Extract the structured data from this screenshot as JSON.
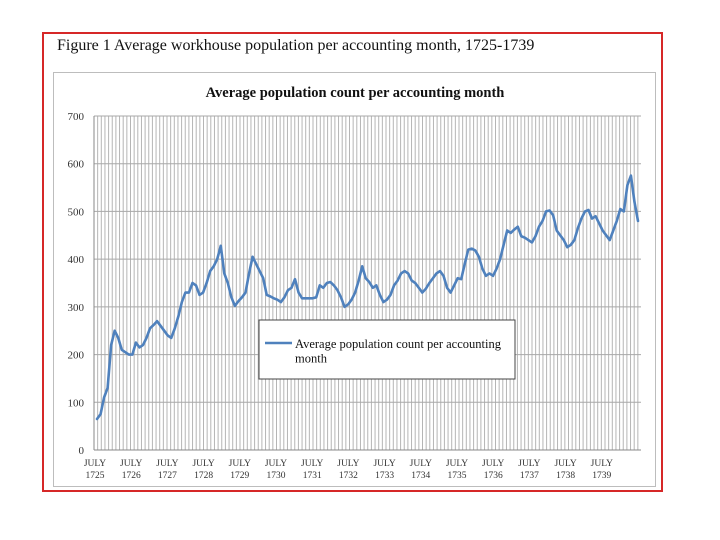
{
  "figure_title": "Figure 1 Average workhouse population per accounting month, 1725-1739",
  "chart_data": {
    "type": "line",
    "title": "Average population count per accounting month",
    "xlabel": "",
    "ylabel": "",
    "ylim": [
      0,
      700
    ],
    "yticks": [
      0,
      100,
      200,
      300,
      400,
      500,
      600,
      700
    ],
    "grid": {
      "horizontal": true,
      "vertical": true
    },
    "x_tick_labels": [
      {
        "month": "JULY",
        "year": "1725"
      },
      {
        "month": "JULY",
        "year": "1726"
      },
      {
        "month": "JULY",
        "year": "1727"
      },
      {
        "month": "JULY",
        "year": "1728"
      },
      {
        "month": "JULY",
        "year": "1729"
      },
      {
        "month": "JULY",
        "year": "1730"
      },
      {
        "month": "JULY",
        "year": "1731"
      },
      {
        "month": "JULY",
        "year": "1732"
      },
      {
        "month": "JULY",
        "year": "1733"
      },
      {
        "month": "JULY",
        "year": "1734"
      },
      {
        "month": "JULY",
        "year": "1735"
      },
      {
        "month": "JULY",
        "year": "1736"
      },
      {
        "month": "JULY",
        "year": "1737"
      },
      {
        "month": "JULY",
        "year": "1738"
      },
      {
        "month": "JULY",
        "year": "1739"
      }
    ],
    "legend": {
      "position": "center",
      "label": "Average population count per accounting month"
    },
    "series": [
      {
        "name": "Average population count per accounting month",
        "color": "#4f81bd",
        "values": [
          65,
          75,
          110,
          130,
          220,
          250,
          235,
          210,
          205,
          200,
          200,
          225,
          215,
          220,
          235,
          255,
          262,
          270,
          260,
          250,
          240,
          235,
          255,
          280,
          310,
          330,
          330,
          350,
          345,
          325,
          330,
          350,
          375,
          385,
          400,
          428,
          370,
          350,
          320,
          302,
          312,
          320,
          330,
          370,
          405,
          390,
          375,
          360,
          325,
          322,
          318,
          315,
          310,
          320,
          335,
          340,
          358,
          330,
          318,
          318,
          318,
          318,
          320,
          345,
          340,
          350,
          352,
          345,
          335,
          320,
          300,
          305,
          315,
          330,
          355,
          385,
          360,
          352,
          340,
          345,
          325,
          310,
          315,
          325,
          345,
          355,
          370,
          375,
          370,
          355,
          350,
          340,
          330,
          338,
          350,
          360,
          370,
          375,
          365,
          340,
          330,
          345,
          360,
          358,
          390,
          420,
          422,
          418,
          405,
          380,
          365,
          370,
          365,
          380,
          400,
          430,
          460,
          455,
          462,
          468,
          448,
          445,
          440,
          435,
          448,
          468,
          480,
          500,
          502,
          492,
          460,
          450,
          440,
          425,
          430,
          440,
          465,
          485,
          500,
          503,
          485,
          490,
          475,
          460,
          450,
          440,
          460,
          480,
          505,
          500,
          555,
          575,
          520,
          480
        ]
      }
    ]
  }
}
